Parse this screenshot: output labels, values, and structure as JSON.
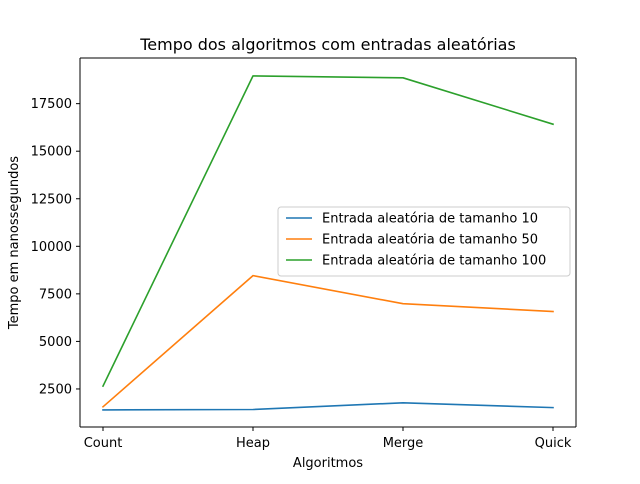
{
  "chart_data": {
    "type": "line",
    "title": "Tempo dos algoritmos com entradas aleatórias",
    "xlabel": "Algoritmos",
    "ylabel": "Tempo em nanossegundos",
    "categories": [
      "Count",
      "Heap",
      "Merge",
      "Quick"
    ],
    "yticks": [
      2500,
      5000,
      7500,
      10000,
      12500,
      15000,
      17500
    ],
    "ytick_labels": [
      "2500",
      "5000",
      "7500",
      "10000",
      "12500",
      "15000",
      "17500"
    ],
    "ylim": [
      500,
      19900
    ],
    "grid": false,
    "legend_position": "center-right",
    "series": [
      {
        "name": "Entrada aleatória de tamanho 10",
        "color": "#1f77b4",
        "values": [
          1400,
          1420,
          1770,
          1520
        ]
      },
      {
        "name": "Entrada aleatória de tamanho 50",
        "color": "#ff7f0e",
        "values": [
          1560,
          8460,
          6980,
          6570
        ]
      },
      {
        "name": "Entrada aleatória de tamanho 100",
        "color": "#2ca02c",
        "values": [
          2650,
          18960,
          18860,
          16420
        ]
      }
    ]
  }
}
